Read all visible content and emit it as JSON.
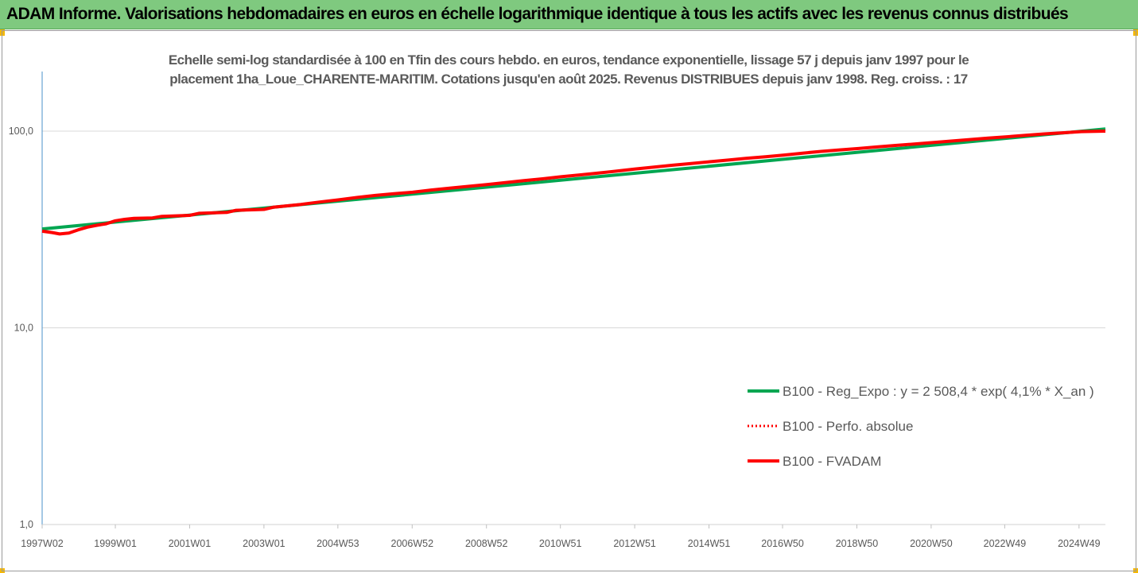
{
  "banner": {
    "title": "ADAM Informe. Valorisations hebdomadaires en euros en échelle logarithmique identique à tous les actifs avec les revenus connus distribués",
    "background": "#7fc97f"
  },
  "chart_data": {
    "type": "line",
    "title": "Echelle semi-log standardisée à 100 en Tfin des cours hebdo. en euros, tendance exponentielle, lissage 57 j depuis janv 1997 pour le placement 1ha_Loue_CHARENTE-MARITIM. Cotations jusqu'en août 2025. Revenus DISTRIBUES depuis janv 1998. Reg. croiss. : 17",
    "title_line1": "Echelle semi-log standardisée à 100 en Tfin des cours hebdo. en euros, tendance exponentielle, lissage 57 j depuis janv 1997 pour le",
    "title_line2": "placement 1ha_Loue_CHARENTE-MARITIM. Cotations jusqu'en août 2025. Revenus DISTRIBUES depuis janv 1998. Reg. croiss. : 17",
    "y_scale": "log",
    "ylim": [
      1,
      180
    ],
    "y_ticks": [
      {
        "value": 1,
        "label": "1,0"
      },
      {
        "value": 10,
        "label": "10,0"
      },
      {
        "value": 100,
        "label": "100,0"
      }
    ],
    "x_range": [
      1997.03,
      2025.65
    ],
    "x_ticks": [
      {
        "x": 1997.03,
        "label": "1997W02"
      },
      {
        "x": 1999.0,
        "label": "1999W01"
      },
      {
        "x": 2001.0,
        "label": "2001W01"
      },
      {
        "x": 2003.0,
        "label": "2003W01"
      },
      {
        "x": 2004.99,
        "label": "2004W53"
      },
      {
        "x": 2006.99,
        "label": "2006W52"
      },
      {
        "x": 2008.99,
        "label": "2008W52"
      },
      {
        "x": 2010.98,
        "label": "2010W51"
      },
      {
        "x": 2012.98,
        "label": "2012W51"
      },
      {
        "x": 2014.98,
        "label": "2014W51"
      },
      {
        "x": 2016.96,
        "label": "2016W50"
      },
      {
        "x": 2018.96,
        "label": "2018W50"
      },
      {
        "x": 2020.96,
        "label": "2020W50"
      },
      {
        "x": 2022.94,
        "label": "2022W49"
      },
      {
        "x": 2024.94,
        "label": "2024W49"
      }
    ],
    "grid": "horizontal",
    "legend_position": "bottom-right",
    "series": [
      {
        "name": "B100 - Reg_Expo : y = 2 508,4 * exp( 4,1% *  X_an )",
        "color": "#00a651",
        "style": "solid",
        "points": [
          [
            1997.03,
            31.8
          ],
          [
            2025.65,
            102.5
          ]
        ]
      },
      {
        "name": "B100 - Perfo. absolue",
        "color": "#ff0000",
        "style": "dotted",
        "points": []
      },
      {
        "name": "B100 - FVADAM",
        "color": "#ff0000",
        "style": "solid",
        "points": [
          [
            1997.03,
            31.0
          ],
          [
            1997.3,
            30.5
          ],
          [
            1997.5,
            30.0
          ],
          [
            1997.75,
            30.3
          ],
          [
            1998.0,
            31.5
          ],
          [
            1998.25,
            32.5
          ],
          [
            1998.5,
            33.2
          ],
          [
            1998.75,
            33.8
          ],
          [
            1999.0,
            35.0
          ],
          [
            1999.25,
            35.6
          ],
          [
            1999.5,
            36.0
          ],
          [
            2000.0,
            36.2
          ],
          [
            2000.25,
            36.9
          ],
          [
            2001.0,
            37.3
          ],
          [
            2001.25,
            38.2
          ],
          [
            2002.0,
            38.6
          ],
          [
            2002.25,
            39.6
          ],
          [
            2003.0,
            40.0
          ],
          [
            2003.25,
            41.0
          ],
          [
            2004.0,
            42.4
          ],
          [
            2004.5,
            43.6
          ],
          [
            2005.0,
            44.7
          ],
          [
            2005.5,
            46.0
          ],
          [
            2006.0,
            47.1
          ],
          [
            2006.5,
            48.1
          ],
          [
            2007.0,
            48.9
          ],
          [
            2007.5,
            50.2
          ],
          [
            2008.0,
            51.3
          ],
          [
            2008.5,
            52.4
          ],
          [
            2009.0,
            53.5
          ],
          [
            2009.5,
            54.7
          ],
          [
            2010.0,
            56.0
          ],
          [
            2010.5,
            57.2
          ],
          [
            2011.0,
            58.6
          ],
          [
            2011.5,
            59.9
          ],
          [
            2012.0,
            61.2
          ],
          [
            2012.5,
            62.6
          ],
          [
            2013.0,
            64.2
          ],
          [
            2013.5,
            65.6
          ],
          [
            2014.0,
            67.1
          ],
          [
            2014.5,
            68.4
          ],
          [
            2015.0,
            69.9
          ],
          [
            2015.5,
            71.3
          ],
          [
            2016.0,
            72.8
          ],
          [
            2016.5,
            74.1
          ],
          [
            2017.0,
            75.6
          ],
          [
            2017.5,
            77.3
          ],
          [
            2018.0,
            78.9
          ],
          [
            2018.5,
            80.3
          ],
          [
            2019.0,
            81.6
          ],
          [
            2019.5,
            83.1
          ],
          [
            2020.0,
            84.6
          ],
          [
            2020.5,
            86.0
          ],
          [
            2021.0,
            87.5
          ],
          [
            2021.5,
            89.0
          ],
          [
            2022.0,
            90.6
          ],
          [
            2022.5,
            92.1
          ],
          [
            2023.0,
            93.6
          ],
          [
            2023.5,
            95.3
          ],
          [
            2024.0,
            96.8
          ],
          [
            2024.5,
            98.1
          ],
          [
            2025.0,
            99.4
          ],
          [
            2025.65,
            100.0
          ]
        ]
      }
    ]
  }
}
